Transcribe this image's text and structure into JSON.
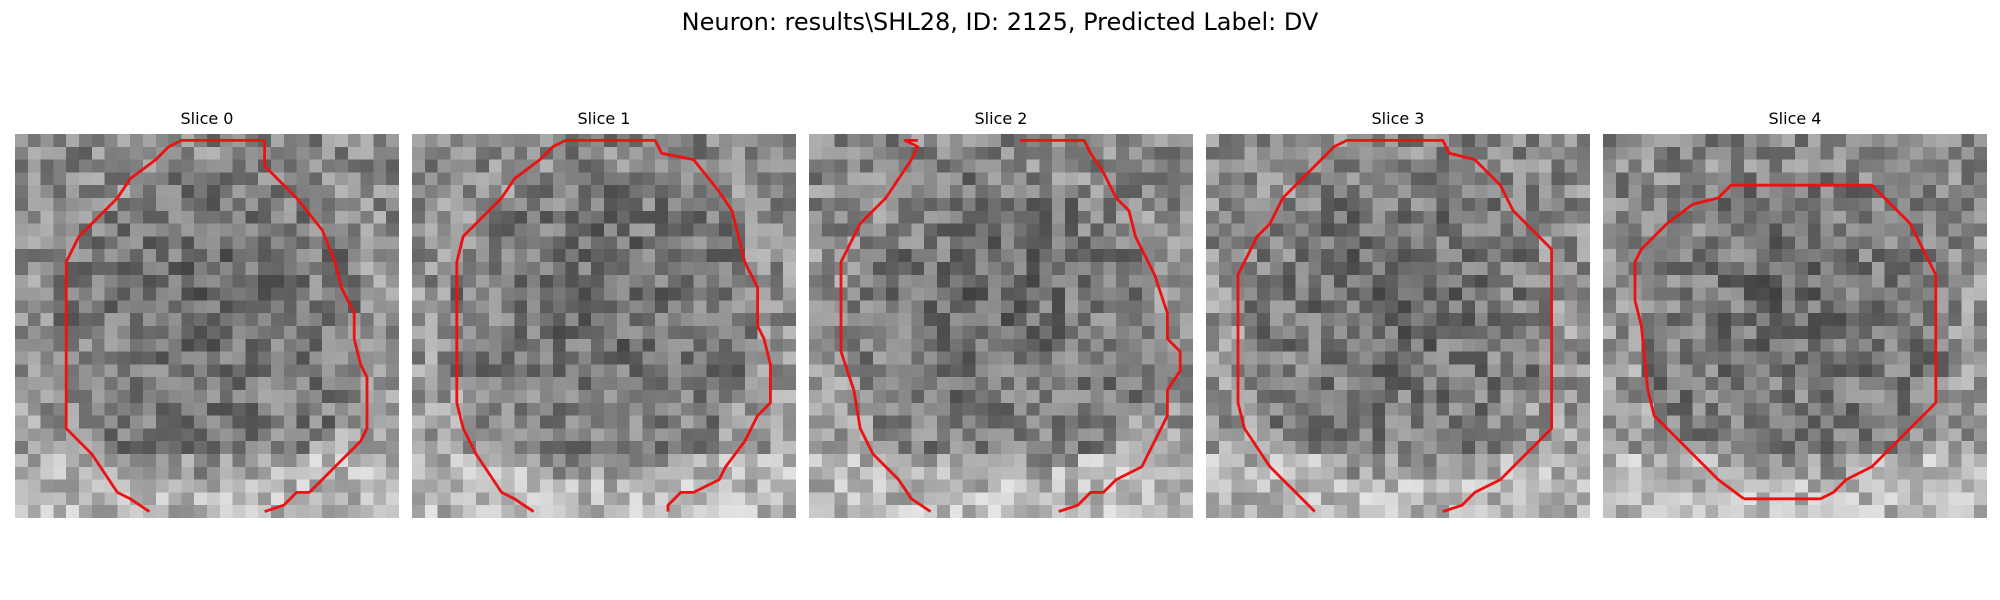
{
  "figure": {
    "suptitle": "Neuron: results\\SHL28, ID: 2125, Predicted Label: DV"
  },
  "panels": [
    {
      "title": "Slice 0",
      "roi_image": "roi-slice-0"
    },
    {
      "title": "Slice 1",
      "roi_image": "roi-slice-1"
    },
    {
      "title": "Slice 2",
      "roi_image": "roi-slice-2"
    },
    {
      "title": "Slice 3",
      "roi_image": "roi-slice-3"
    },
    {
      "title": "Slice 4",
      "roi_image": "roi-slice-4"
    }
  ],
  "colors": {
    "contour": "#ee1111",
    "background": "#ffffff",
    "text": "#000000"
  }
}
